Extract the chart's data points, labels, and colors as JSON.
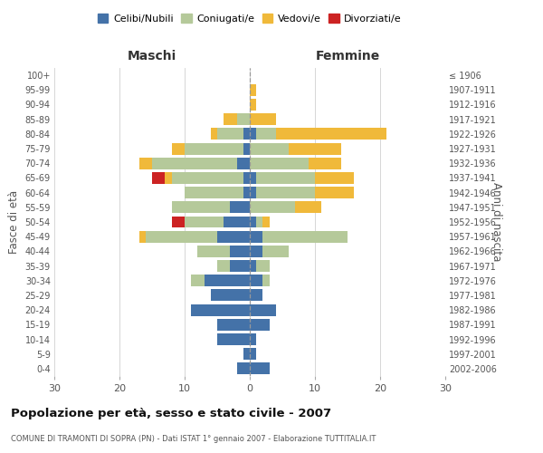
{
  "age_groups": [
    "0-4",
    "5-9",
    "10-14",
    "15-19",
    "20-24",
    "25-29",
    "30-34",
    "35-39",
    "40-44",
    "45-49",
    "50-54",
    "55-59",
    "60-64",
    "65-69",
    "70-74",
    "75-79",
    "80-84",
    "85-89",
    "90-94",
    "95-99",
    "100+"
  ],
  "birth_years": [
    "2002-2006",
    "1997-2001",
    "1992-1996",
    "1987-1991",
    "1982-1986",
    "1977-1981",
    "1972-1976",
    "1967-1971",
    "1962-1966",
    "1957-1961",
    "1952-1956",
    "1947-1951",
    "1942-1946",
    "1937-1941",
    "1932-1936",
    "1927-1931",
    "1922-1926",
    "1917-1921",
    "1912-1916",
    "1907-1911",
    "≤ 1906"
  ],
  "male": {
    "celibi": [
      2,
      1,
      5,
      5,
      9,
      6,
      7,
      3,
      3,
      5,
      4,
      3,
      1,
      1,
      2,
      1,
      1,
      0,
      0,
      0,
      0
    ],
    "coniugati": [
      0,
      0,
      0,
      0,
      0,
      0,
      2,
      2,
      5,
      11,
      6,
      9,
      9,
      11,
      13,
      9,
      4,
      2,
      0,
      0,
      0
    ],
    "vedovi": [
      0,
      0,
      0,
      0,
      0,
      0,
      0,
      0,
      0,
      1,
      0,
      0,
      0,
      1,
      2,
      2,
      1,
      2,
      0,
      0,
      0
    ],
    "divorziati": [
      0,
      0,
      0,
      0,
      0,
      0,
      0,
      0,
      0,
      0,
      2,
      0,
      0,
      2,
      0,
      0,
      0,
      0,
      0,
      0,
      0
    ]
  },
  "female": {
    "nubili": [
      3,
      1,
      1,
      3,
      4,
      2,
      2,
      1,
      2,
      2,
      1,
      0,
      1,
      1,
      0,
      0,
      1,
      0,
      0,
      0,
      0
    ],
    "coniugate": [
      0,
      0,
      0,
      0,
      0,
      0,
      1,
      2,
      4,
      13,
      1,
      7,
      9,
      9,
      9,
      6,
      3,
      0,
      0,
      0,
      0
    ],
    "vedove": [
      0,
      0,
      0,
      0,
      0,
      0,
      0,
      0,
      0,
      0,
      1,
      4,
      6,
      6,
      5,
      8,
      17,
      4,
      1,
      1,
      0
    ],
    "divorziate": [
      0,
      0,
      0,
      0,
      0,
      0,
      0,
      0,
      0,
      0,
      0,
      0,
      0,
      0,
      0,
      0,
      0,
      0,
      0,
      0,
      0
    ]
  },
  "colors": {
    "celibi_nubili": "#4472a8",
    "coniugati": "#b5c99a",
    "vedovi": "#f0b93a",
    "divorziati": "#cc2222"
  },
  "title": "Popolazione per età, sesso e stato civile - 2007",
  "subtitle": "COMUNE DI TRAMONTI DI SOPRA (PN) - Dati ISTAT 1° gennaio 2007 - Elaborazione TUTTITALIA.IT",
  "xlabel_left": "Maschi",
  "xlabel_right": "Femmine",
  "ylabel_left": "Fasce di età",
  "ylabel_right": "Anni di nascita",
  "xlim": 30,
  "bg_color": "#ffffff",
  "grid_color": "#d0d0d0"
}
